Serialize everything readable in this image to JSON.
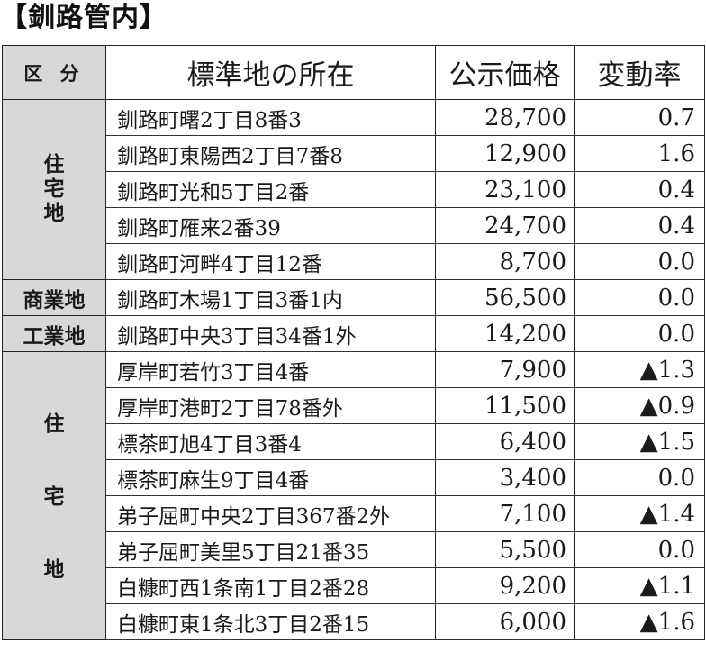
{
  "title": "【釧路管内】",
  "headers": {
    "category": "区 分",
    "location": "標準地の所在",
    "price": "公示価格",
    "rate": "変動率"
  },
  "categories": {
    "residential_1": [
      "住",
      "宅",
      "地"
    ],
    "commercial": "商業地",
    "industrial": "工業地",
    "residential_2": [
      "住",
      "宅",
      "地"
    ]
  },
  "rows": [
    {
      "location": "釧路町曙2丁目8番3",
      "price": "28,700",
      "rate": "0.7"
    },
    {
      "location": "釧路町東陽西2丁目7番8",
      "price": "12,900",
      "rate": "1.6"
    },
    {
      "location": "釧路町光和5丁目2番",
      "price": "23,100",
      "rate": "0.4"
    },
    {
      "location": "釧路町雁来2番39",
      "price": "24,700",
      "rate": "0.4"
    },
    {
      "location": "釧路町河畔4丁目12番",
      "price": "8,700",
      "rate": "0.0"
    },
    {
      "location": "釧路町木場1丁目3番1内",
      "price": "56,500",
      "rate": "0.0"
    },
    {
      "location": "釧路町中央3丁目34番1外",
      "price": "14,200",
      "rate": "0.0"
    },
    {
      "location": "厚岸町若竹3丁目4番",
      "price": "7,900",
      "rate": "▲1.3"
    },
    {
      "location": "厚岸町港町2丁目78番外",
      "price": "11,500",
      "rate": "▲0.9"
    },
    {
      "location": "標茶町旭4丁目3番4",
      "price": "6,400",
      "rate": "▲1.5"
    },
    {
      "location": "標茶町麻生9丁目4番",
      "price": "3,400",
      "rate": "0.0"
    },
    {
      "location": "弟子屈町中央2丁目367番2外",
      "price": "7,100",
      "rate": "▲1.4"
    },
    {
      "location": "弟子屈町美里5丁目21番35",
      "price": "5,500",
      "rate": "0.0"
    },
    {
      "location": "白糠町西1条南1丁目2番28",
      "price": "9,200",
      "rate": "▲1.1"
    },
    {
      "location": "白糠町東1条北3丁目2番15",
      "price": "6,000",
      "rate": "▲1.6"
    }
  ]
}
